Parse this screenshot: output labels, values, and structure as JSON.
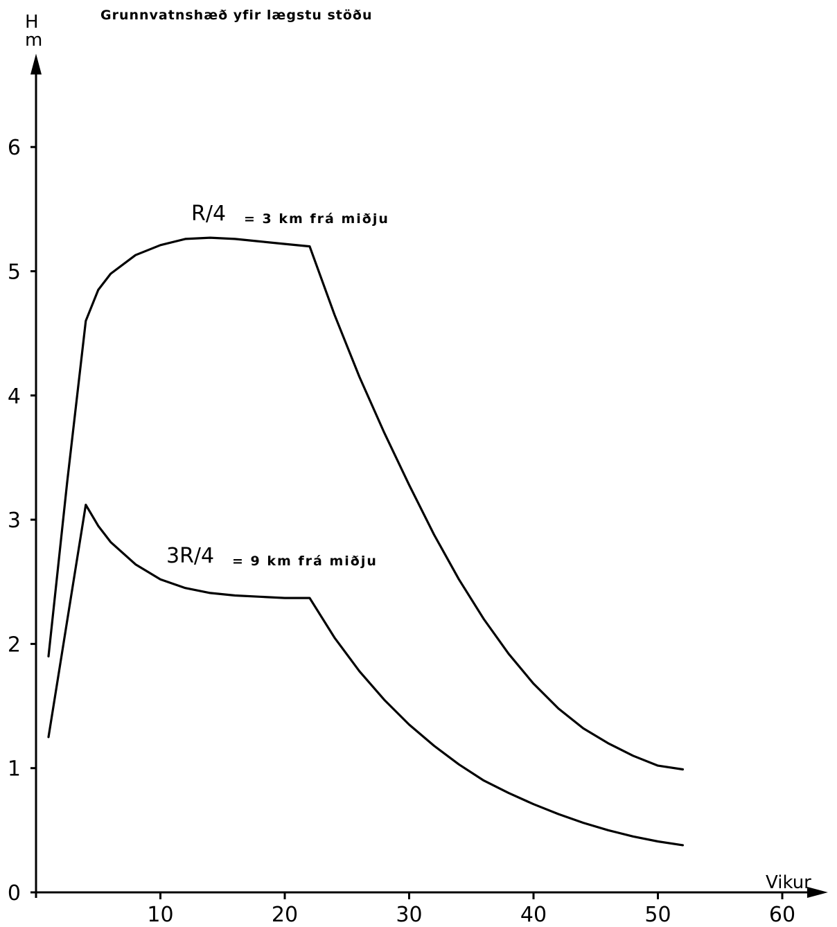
{
  "chart_data": {
    "type": "line",
    "title": "Grunnvatnshæð yfir lægstu stöðu",
    "ylabel_line1": "H",
    "ylabel_line2": "m",
    "xlabel": "Vikur",
    "xlim": [
      0,
      62
    ],
    "ylim": [
      0,
      6.5
    ],
    "xticks": [
      10,
      20,
      30,
      40,
      50,
      60
    ],
    "yticks": [
      0,
      1,
      2,
      3,
      4,
      5,
      6
    ],
    "grid": false,
    "series": [
      {
        "name": "R/4 = 3 km frá miðju",
        "label_main": "R/4",
        "label_rest": "= 3 km frá miðju",
        "x": [
          1,
          2.5,
          4,
          5,
          6,
          8,
          10,
          12,
          14,
          16,
          18,
          20,
          22,
          24,
          26,
          28,
          30,
          32,
          34,
          36,
          38,
          40,
          42,
          44,
          46,
          48,
          50,
          52
        ],
        "y": [
          1.9,
          3.3,
          4.6,
          4.85,
          4.98,
          5.13,
          5.21,
          5.26,
          5.27,
          5.26,
          5.24,
          5.22,
          5.2,
          4.65,
          4.15,
          3.7,
          3.28,
          2.88,
          2.52,
          2.2,
          1.92,
          1.68,
          1.48,
          1.32,
          1.2,
          1.1,
          1.02,
          0.99
        ]
      },
      {
        "name": "3R/4 = 9 km frá miðju",
        "label_main": "3R/4",
        "label_rest": "= 9 km frá miðju",
        "x": [
          1,
          4,
          5,
          6,
          8,
          10,
          12,
          14,
          16,
          18,
          20,
          22,
          24,
          26,
          28,
          30,
          32,
          34,
          36,
          38,
          40,
          42,
          44,
          46,
          48,
          50,
          52
        ],
        "y": [
          1.25,
          3.12,
          2.95,
          2.82,
          2.64,
          2.52,
          2.45,
          2.41,
          2.39,
          2.38,
          2.37,
          2.37,
          2.05,
          1.78,
          1.55,
          1.35,
          1.18,
          1.03,
          0.9,
          0.8,
          0.71,
          0.63,
          0.56,
          0.5,
          0.45,
          0.41,
          0.38
        ]
      }
    ]
  }
}
